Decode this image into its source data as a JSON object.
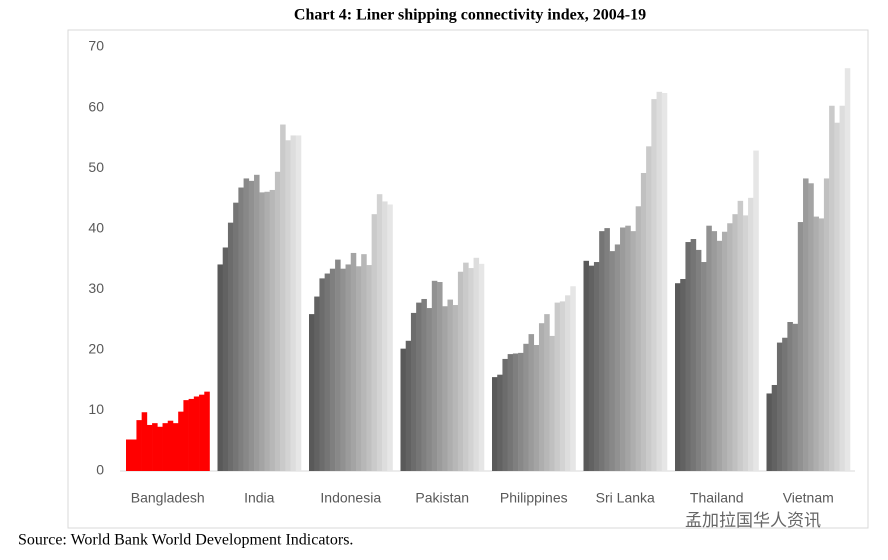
{
  "chart_data": {
    "type": "bar",
    "title": "Chart 4: Liner shipping connectivity index, 2004-19",
    "source": "Source: World Bank World Development Indicators.",
    "watermark": "孟加拉国华人资讯",
    "ylim": [
      0,
      70
    ],
    "yticks": [
      0,
      10,
      20,
      30,
      40,
      50,
      60,
      70
    ],
    "grid": false,
    "series": [
      {
        "name": "Bangladesh",
        "color": "#ff0000",
        "values": [
          5.2,
          5.2,
          8.4,
          9.7,
          7.6,
          7.9,
          7.3,
          7.9,
          8.3,
          7.9,
          9.8,
          11.7,
          11.9,
          12.3,
          12.6,
          13.1
        ]
      },
      {
        "name": "India",
        "gradient": [
          "#595959",
          "#e6e6e6"
        ],
        "values": [
          34.1,
          36.9,
          41.0,
          44.3,
          46.8,
          48.3,
          47.9,
          48.9,
          46.0,
          46.1,
          46.4,
          49.4,
          57.2,
          54.6,
          55.4,
          55.4
        ]
      },
      {
        "name": "Indonesia",
        "gradient": [
          "#595959",
          "#e6e6e6"
        ],
        "values": [
          25.9,
          28.8,
          31.8,
          32.6,
          33.4,
          34.9,
          33.4,
          34.1,
          36.0,
          33.8,
          35.8,
          34.0,
          42.4,
          45.7,
          44.5,
          44.0
        ]
      },
      {
        "name": "Pakistan",
        "gradient": [
          "#595959",
          "#e6e6e6"
        ],
        "values": [
          20.2,
          21.5,
          26.1,
          27.8,
          28.4,
          26.9,
          31.4,
          31.2,
          27.2,
          28.3,
          27.4,
          32.9,
          34.4,
          33.5,
          35.2,
          34.2
        ]
      },
      {
        "name": "Philippines",
        "gradient": [
          "#595959",
          "#e6e6e6"
        ],
        "values": [
          15.5,
          15.9,
          18.5,
          19.3,
          19.4,
          19.5,
          21.0,
          22.6,
          20.8,
          24.4,
          25.9,
          22.3,
          27.8,
          28.0,
          29.0,
          30.5
        ]
      },
      {
        "name": "Sri Lanka",
        "gradient": [
          "#595959",
          "#e6e6e6"
        ],
        "values": [
          34.7,
          33.9,
          34.5,
          39.6,
          40.1,
          36.3,
          37.4,
          40.2,
          40.5,
          39.6,
          43.7,
          49.2,
          53.6,
          61.4,
          62.6,
          62.4
        ]
      },
      {
        "name": "Thailand",
        "gradient": [
          "#595959",
          "#e6e6e6"
        ],
        "values": [
          31.0,
          31.7,
          37.8,
          38.3,
          36.5,
          34.5,
          40.5,
          39.6,
          38.0,
          39.5,
          40.9,
          42.4,
          44.6,
          42.2,
          45.1,
          52.9
        ]
      },
      {
        "name": "Vietnam",
        "gradient": [
          "#595959",
          "#e6e6e6"
        ],
        "values": [
          12.8,
          14.2,
          21.2,
          22.0,
          24.6,
          24.3,
          41.1,
          48.3,
          47.5,
          42.0,
          41.7,
          48.3,
          60.3,
          57.5,
          60.3,
          66.5
        ]
      }
    ]
  }
}
